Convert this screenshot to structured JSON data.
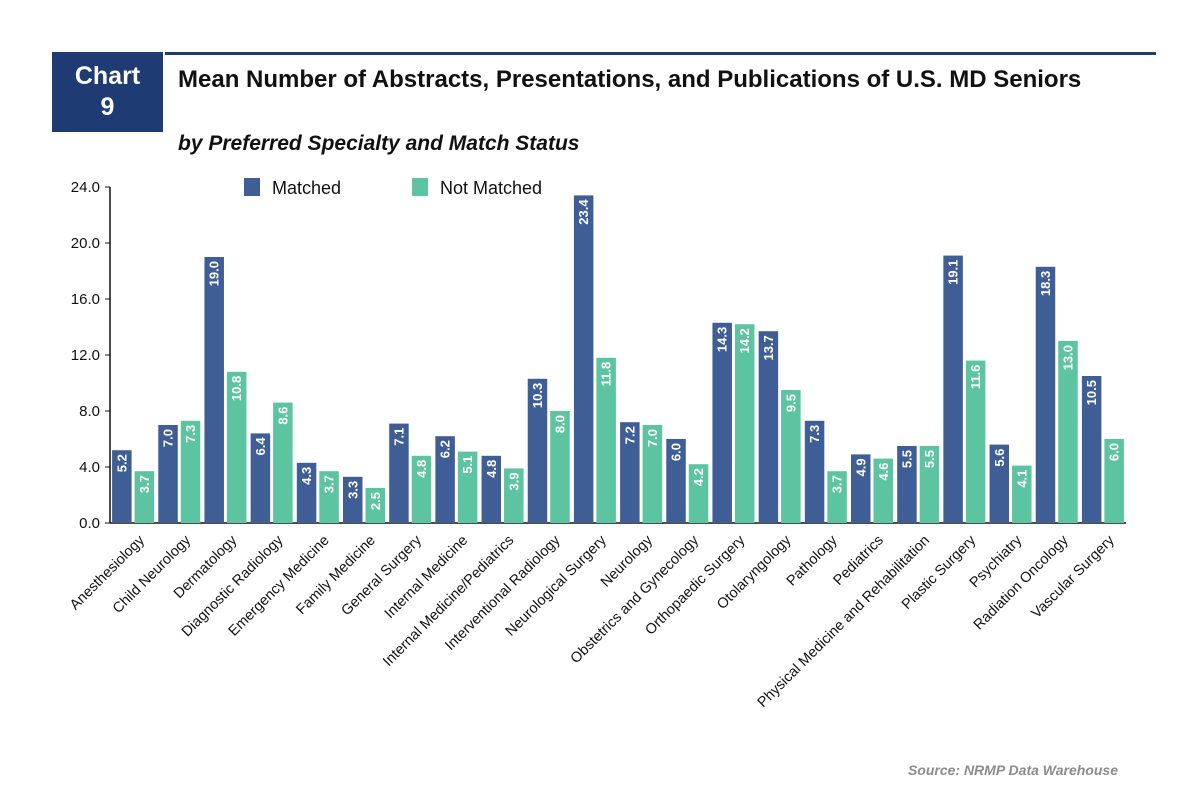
{
  "header": {
    "badge_line1": "Chart",
    "badge_line2": "9",
    "title": "Mean Number of Abstracts, Presentations, and Publications of U.S. MD Seniors",
    "subtitle": "by Preferred Specialty and Match Status"
  },
  "source": "Source: NRMP Data Warehouse",
  "colors": {
    "matched": "#3f5e96",
    "not_matched": "#5dc4a2",
    "accent": "#1f3b73"
  },
  "chart_data": {
    "type": "bar",
    "title": "Mean Number of Abstracts, Presentations, and Publications of U.S. MD Seniors",
    "subtitle": "by Preferred Specialty and Match Status",
    "xlabel": "",
    "ylabel": "",
    "ylim": [
      0,
      24
    ],
    "yticks": [
      "0.0",
      "4.0",
      "8.0",
      "12.0",
      "16.0",
      "20.0",
      "24.0"
    ],
    "grid": false,
    "legend_position": "top",
    "categories": [
      "Anesthesiology",
      "Child Neurology",
      "Dermatology",
      "Diagnostic Radiology",
      "Emergency Medicine",
      "Family Medicine",
      "General Surgery",
      "Internal Medicine",
      "Internal Medicine/Pediatrics",
      "Interventional Radiology",
      "Neurological Surgery",
      "Neurology",
      "Obstetrics and Gynecology",
      "Orthopaedic Surgery",
      "Otolaryngology",
      "Pathology",
      "Pediatrics",
      "Physical Medicine and Rehabilitation",
      "Plastic Surgery",
      "Psychiatry",
      "Radiation Oncology",
      "Vascular Surgery"
    ],
    "series": [
      {
        "name": "Matched",
        "values": [
          5.2,
          7.0,
          19.0,
          6.4,
          4.3,
          3.3,
          7.1,
          6.2,
          4.8,
          10.3,
          23.4,
          7.2,
          6.0,
          14.3,
          13.7,
          7.3,
          4.9,
          5.5,
          19.1,
          5.6,
          18.3,
          10.5
        ]
      },
      {
        "name": "Not Matched",
        "values": [
          3.7,
          7.3,
          10.8,
          8.6,
          3.7,
          2.5,
          4.8,
          5.1,
          3.9,
          8.0,
          11.8,
          7.0,
          4.2,
          14.2,
          9.5,
          3.7,
          4.6,
          5.5,
          11.6,
          4.1,
          13.0,
          6.0
        ]
      }
    ]
  }
}
